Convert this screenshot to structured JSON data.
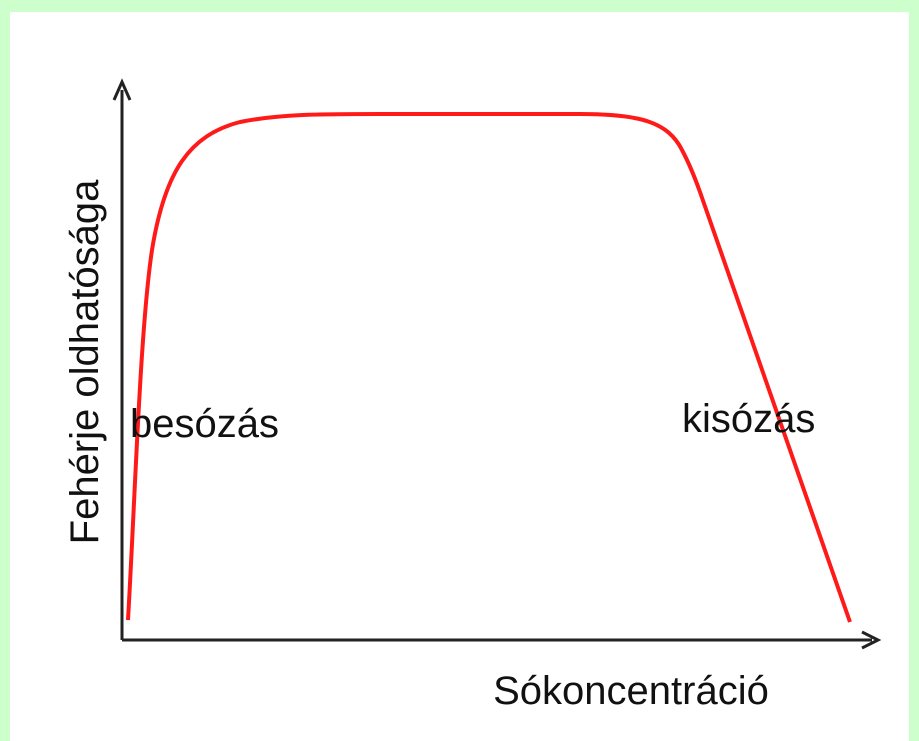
{
  "diagram": {
    "y_axis_label": "Fehérje oldhatósága",
    "x_axis_label": "Sókoncentráció",
    "annotations": [
      "besózás",
      "kisózás"
    ]
  }
}
